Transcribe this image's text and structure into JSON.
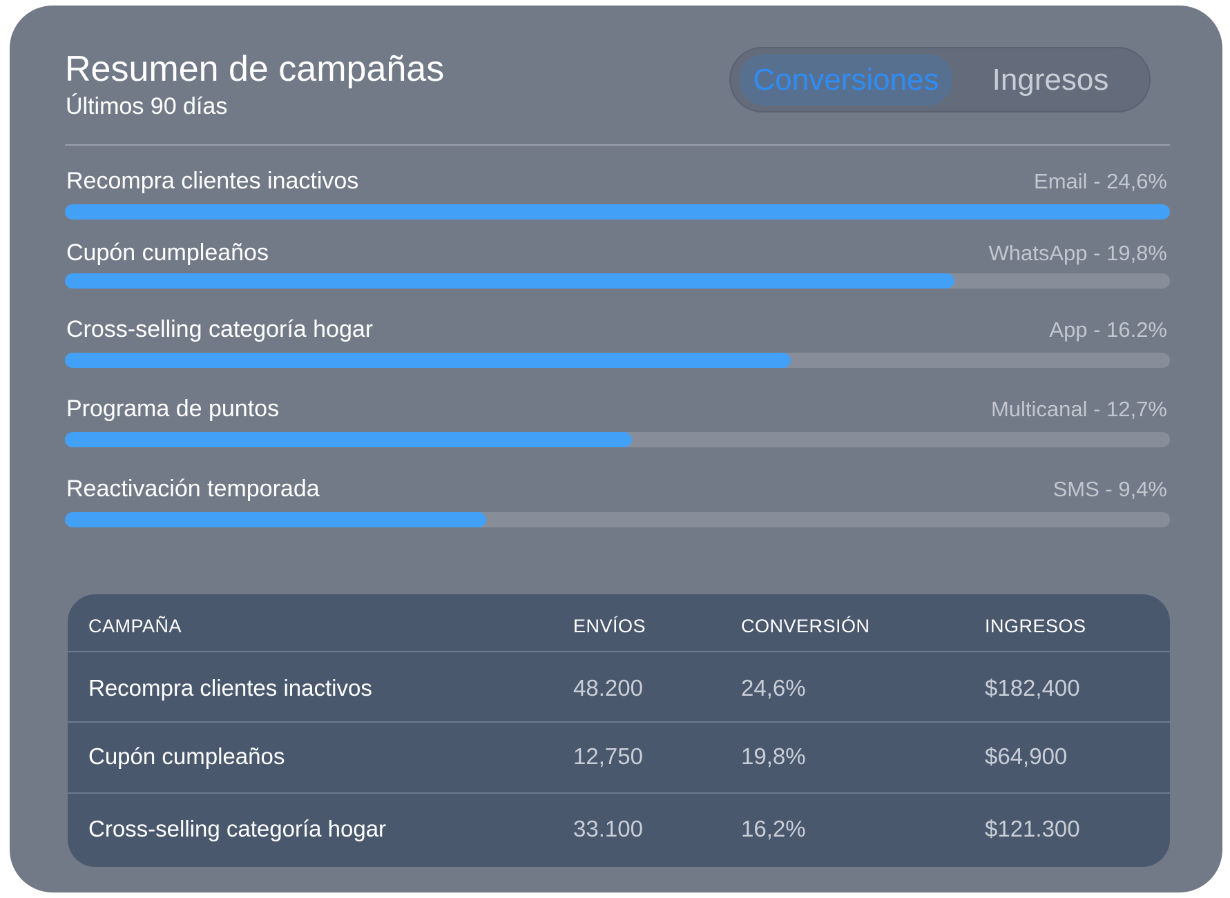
{
  "header": {
    "title": "Resumen de campañas",
    "subtitle": "Últimos 90 días"
  },
  "toggle": {
    "options": [
      "Conversiones",
      "Ingresos"
    ],
    "selected": "Conversiones"
  },
  "campaigns": [
    {
      "name": "Recompra clientes inactivos",
      "meta": "Email - 24,6%",
      "fill_percent": 100
    },
    {
      "name": "Cupón cumpleaños",
      "meta": "WhatsApp - 19,8%",
      "fill_percent": 80.5
    },
    {
      "name": "Cross-selling categoría hogar",
      "meta": "App - 16.2%",
      "fill_percent": 65.7
    },
    {
      "name": "Programa de puntos",
      "meta": "Multicanal - 12,7%",
      "fill_percent": 51.3
    },
    {
      "name": "Reactivación temporada",
      "meta": "SMS - 9,4%",
      "fill_percent": 38.1
    }
  ],
  "table": {
    "headers": [
      "CAMPAÑA",
      "ENVÍOS",
      "CONVERSIÓN",
      "INGRESOS"
    ],
    "rows": [
      [
        "Recompra clientes inactivos",
        "48.200",
        "24,6%",
        "$182,400"
      ],
      [
        "Cupón cumpleaños",
        "12,750",
        "19,8%",
        "$64,900"
      ],
      [
        "Cross-selling categoría hogar",
        "33.100",
        "16,2%",
        "$121.300"
      ]
    ]
  },
  "colors": {
    "card_background": "#737a87",
    "accent_blue": "#42a0f7",
    "bar_track": "#888e99",
    "table_background": "#4a586e",
    "toggle_active_text": "#2f8cf4"
  }
}
